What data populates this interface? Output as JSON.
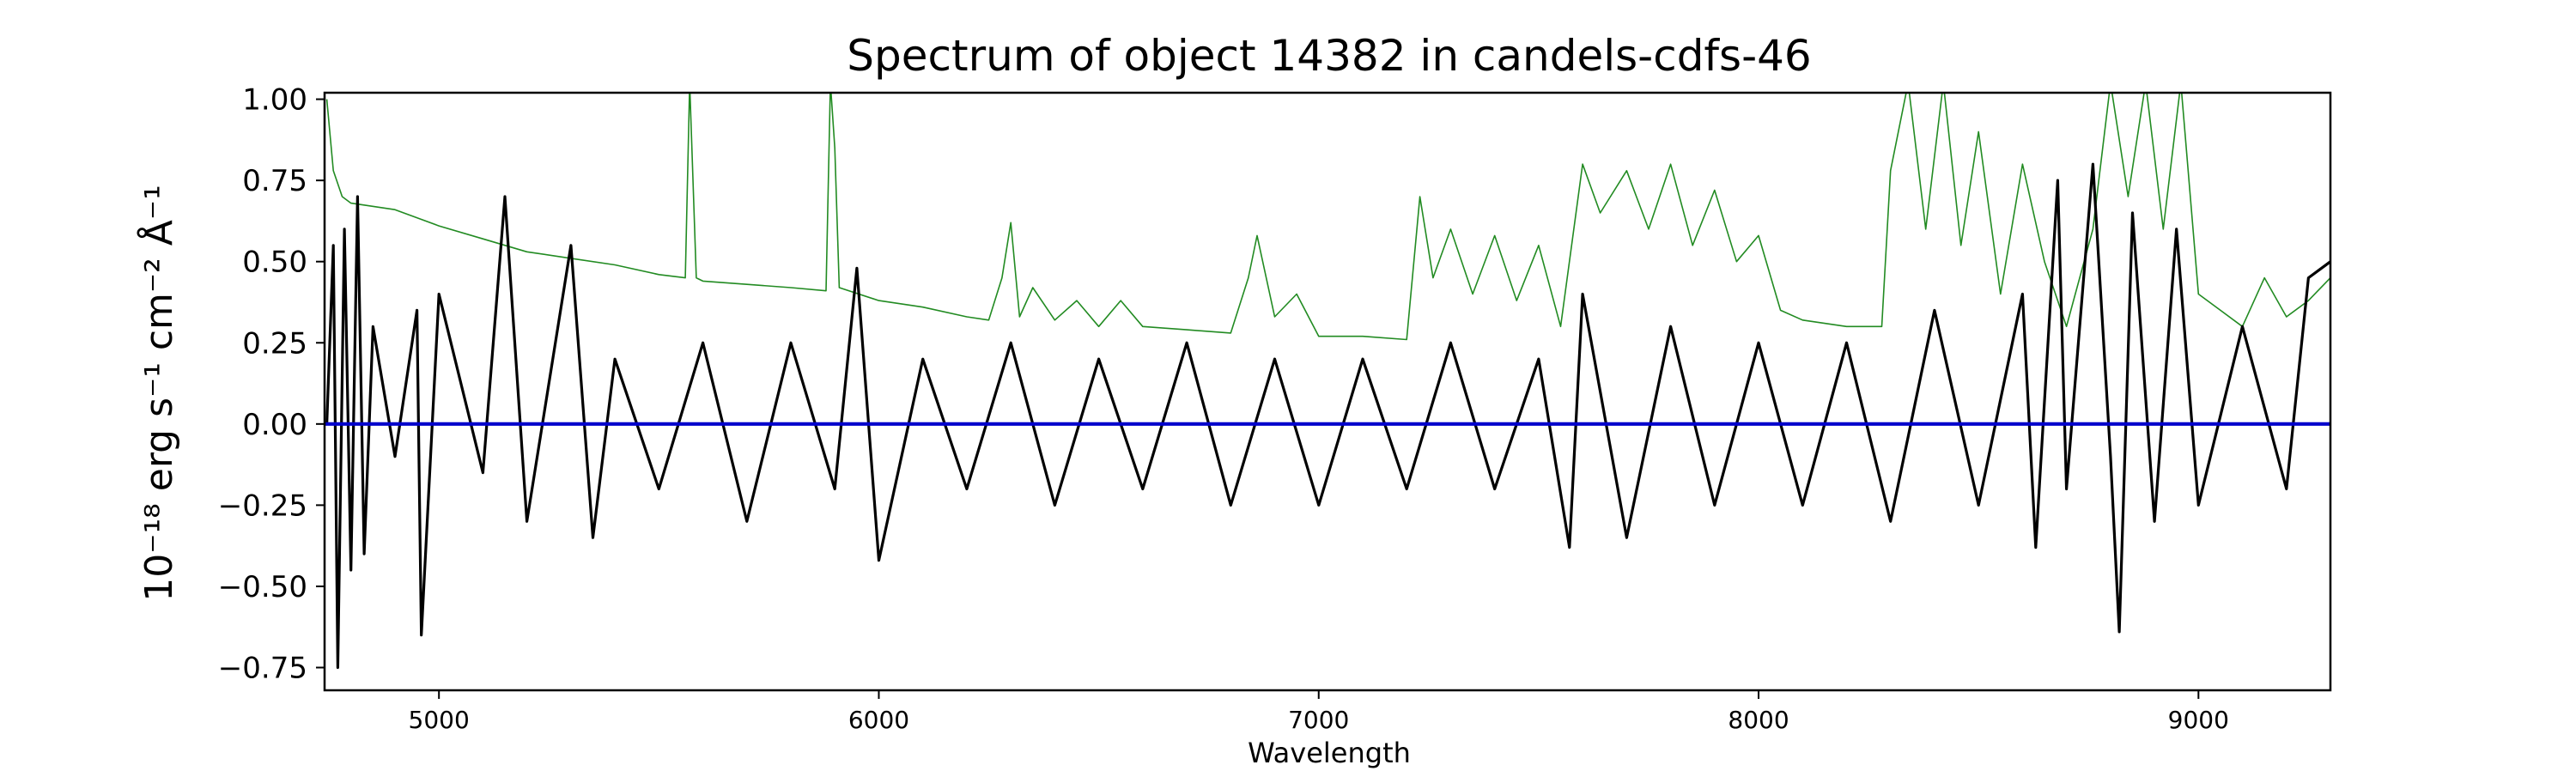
{
  "chart_data": {
    "type": "line",
    "title": "Spectrum of object 14382 in candels-cdfs-46",
    "xlabel": "Wavelength",
    "ylabel": "10⁻¹⁸ erg s⁻¹ cm⁻² Å⁻¹",
    "xlim": [
      4740,
      9300
    ],
    "ylim": [
      -0.82,
      1.02
    ],
    "x_ticks": [
      5000,
      6000,
      7000,
      8000,
      9000
    ],
    "y_ticks": [
      -0.75,
      -0.5,
      -0.25,
      0.0,
      0.25,
      0.5,
      0.75,
      1.0
    ],
    "y_tick_labels": [
      "−0.75",
      "−0.50",
      "−0.25",
      "0.00",
      "0.25",
      "0.50",
      "0.75",
      "1.00"
    ],
    "grid": false,
    "series": [
      {
        "color": "#228b22",
        "description_points": [
          [
            4745,
            1.0
          ],
          [
            4760,
            0.78
          ],
          [
            4780,
            0.7
          ],
          [
            4800,
            0.68
          ],
          [
            4900,
            0.66
          ],
          [
            5000,
            0.61
          ],
          [
            5100,
            0.57
          ],
          [
            5200,
            0.53
          ],
          [
            5300,
            0.51
          ],
          [
            5400,
            0.49
          ],
          [
            5500,
            0.46
          ],
          [
            5560,
            0.45
          ],
          [
            5570,
            1.05
          ],
          [
            5585,
            0.45
          ],
          [
            5600,
            0.44
          ],
          [
            5700,
            0.43
          ],
          [
            5800,
            0.42
          ],
          [
            5880,
            0.41
          ],
          [
            5890,
            1.05
          ],
          [
            5900,
            0.85
          ],
          [
            5910,
            0.42
          ],
          [
            6000,
            0.38
          ],
          [
            6100,
            0.36
          ],
          [
            6200,
            0.33
          ],
          [
            6250,
            0.32
          ],
          [
            6280,
            0.45
          ],
          [
            6300,
            0.62
          ],
          [
            6320,
            0.33
          ],
          [
            6350,
            0.42
          ],
          [
            6400,
            0.32
          ],
          [
            6450,
            0.38
          ],
          [
            6500,
            0.3
          ],
          [
            6550,
            0.38
          ],
          [
            6600,
            0.3
          ],
          [
            6700,
            0.29
          ],
          [
            6800,
            0.28
          ],
          [
            6840,
            0.45
          ],
          [
            6860,
            0.58
          ],
          [
            6900,
            0.33
          ],
          [
            6950,
            0.4
          ],
          [
            7000,
            0.27
          ],
          [
            7100,
            0.27
          ],
          [
            7200,
            0.26
          ],
          [
            7230,
            0.7
          ],
          [
            7260,
            0.45
          ],
          [
            7300,
            0.6
          ],
          [
            7350,
            0.4
          ],
          [
            7400,
            0.58
          ],
          [
            7450,
            0.38
          ],
          [
            7500,
            0.55
          ],
          [
            7550,
            0.3
          ],
          [
            7600,
            0.8
          ],
          [
            7640,
            0.65
          ],
          [
            7700,
            0.78
          ],
          [
            7750,
            0.6
          ],
          [
            7800,
            0.8
          ],
          [
            7850,
            0.55
          ],
          [
            7900,
            0.72
          ],
          [
            7950,
            0.5
          ],
          [
            8000,
            0.58
          ],
          [
            8050,
            0.35
          ],
          [
            8100,
            0.32
          ],
          [
            8200,
            0.3
          ],
          [
            8280,
            0.3
          ],
          [
            8300,
            0.78
          ],
          [
            8340,
            1.05
          ],
          [
            8380,
            0.6
          ],
          [
            8420,
            1.05
          ],
          [
            8460,
            0.55
          ],
          [
            8500,
            0.9
          ],
          [
            8550,
            0.4
          ],
          [
            8600,
            0.8
          ],
          [
            8650,
            0.5
          ],
          [
            8700,
            0.3
          ],
          [
            8760,
            0.6
          ],
          [
            8800,
            1.05
          ],
          [
            8840,
            0.7
          ],
          [
            8880,
            1.05
          ],
          [
            8920,
            0.6
          ],
          [
            8960,
            1.05
          ],
          [
            9000,
            0.4
          ],
          [
            9050,
            0.35
          ],
          [
            9100,
            0.3
          ],
          [
            9150,
            0.45
          ],
          [
            9200,
            0.33
          ],
          [
            9250,
            0.38
          ],
          [
            9300,
            0.45
          ]
        ]
      },
      {
        "color": "#000000",
        "description_points": [
          [
            4745,
            0.0
          ],
          [
            4760,
            0.55
          ],
          [
            4770,
            -0.75
          ],
          [
            4785,
            0.6
          ],
          [
            4800,
            -0.45
          ],
          [
            4815,
            0.7
          ],
          [
            4830,
            -0.4
          ],
          [
            4850,
            0.3
          ],
          [
            4900,
            -0.1
          ],
          [
            4950,
            0.35
          ],
          [
            4960,
            -0.65
          ],
          [
            5000,
            0.4
          ],
          [
            5100,
            -0.15
          ],
          [
            5150,
            0.7
          ],
          [
            5200,
            -0.3
          ],
          [
            5300,
            0.55
          ],
          [
            5350,
            -0.35
          ],
          [
            5400,
            0.2
          ],
          [
            5500,
            -0.2
          ],
          [
            5600,
            0.25
          ],
          [
            5700,
            -0.3
          ],
          [
            5800,
            0.25
          ],
          [
            5900,
            -0.2
          ],
          [
            5950,
            0.48
          ],
          [
            6000,
            -0.42
          ],
          [
            6100,
            0.2
          ],
          [
            6200,
            -0.2
          ],
          [
            6300,
            0.25
          ],
          [
            6400,
            -0.25
          ],
          [
            6500,
            0.2
          ],
          [
            6600,
            -0.2
          ],
          [
            6700,
            0.25
          ],
          [
            6800,
            -0.25
          ],
          [
            6900,
            0.2
          ],
          [
            7000,
            -0.25
          ],
          [
            7100,
            0.2
          ],
          [
            7200,
            -0.2
          ],
          [
            7300,
            0.25
          ],
          [
            7400,
            -0.2
          ],
          [
            7500,
            0.2
          ],
          [
            7570,
            -0.38
          ],
          [
            7600,
            0.4
          ],
          [
            7700,
            -0.35
          ],
          [
            7800,
            0.3
          ],
          [
            7900,
            -0.25
          ],
          [
            8000,
            0.25
          ],
          [
            8100,
            -0.25
          ],
          [
            8200,
            0.25
          ],
          [
            8300,
            -0.3
          ],
          [
            8400,
            0.35
          ],
          [
            8500,
            -0.25
          ],
          [
            8600,
            0.4
          ],
          [
            8630,
            -0.38
          ],
          [
            8680,
            0.75
          ],
          [
            8700,
            -0.2
          ],
          [
            8760,
            0.8
          ],
          [
            8800,
            -0.1
          ],
          [
            8820,
            -0.64
          ],
          [
            8850,
            0.65
          ],
          [
            8900,
            -0.3
          ],
          [
            8950,
            0.6
          ],
          [
            9000,
            -0.25
          ],
          [
            9100,
            0.3
          ],
          [
            9200,
            -0.2
          ],
          [
            9250,
            0.45
          ],
          [
            9300,
            0.5
          ]
        ]
      },
      {
        "color": "#0000cc",
        "description_points": [
          [
            4740,
            0.0
          ],
          [
            9300,
            0.0
          ]
        ]
      }
    ]
  }
}
